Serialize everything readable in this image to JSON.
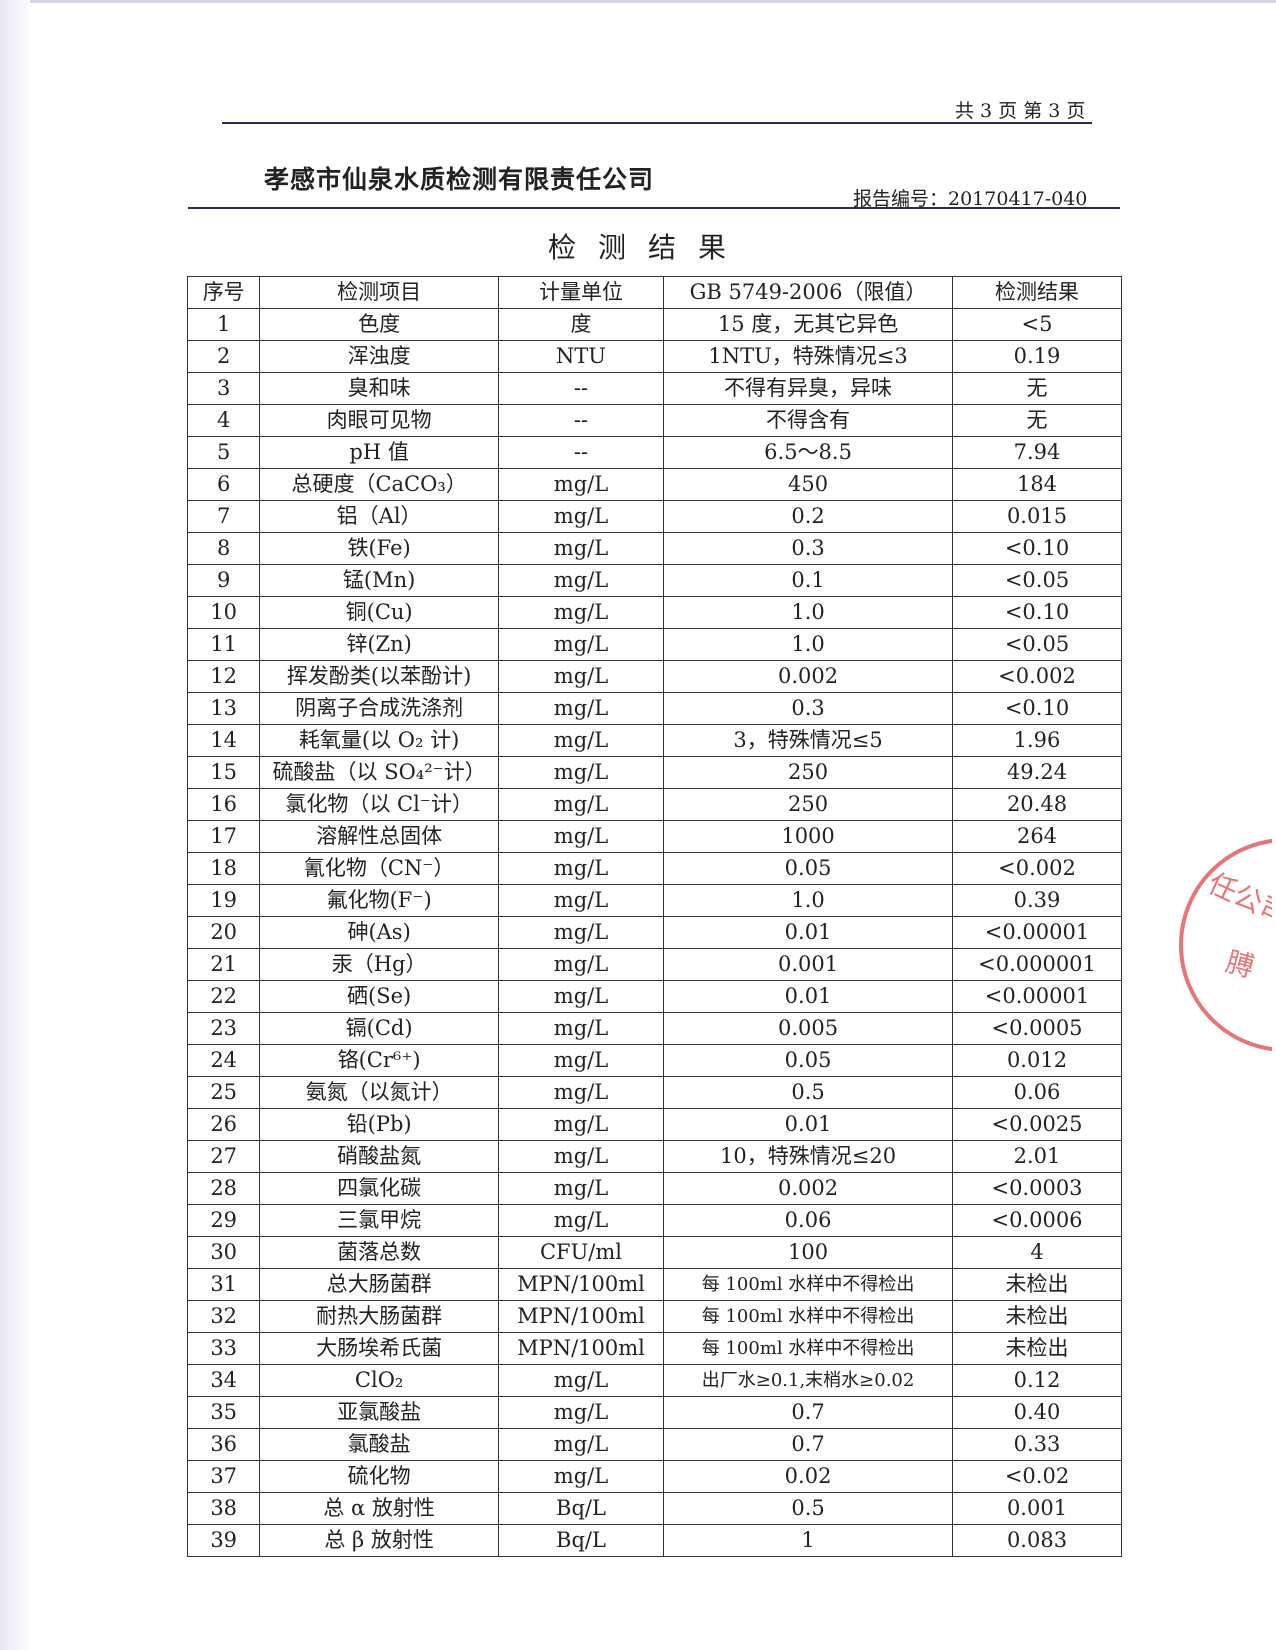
{
  "header": {
    "page_info": "共 3 页  第 3 页",
    "company": "孝感市仙泉水质检测有限责任公司",
    "report_no": "报告编号：20170417-040",
    "title": "检测结果"
  },
  "table": {
    "columns": [
      "序号",
      "检测项目",
      "计量单位",
      "GB 5749-2006（限值）",
      "检测结果"
    ],
    "rows": [
      [
        "1",
        "色度",
        "度",
        "15 度，无其它异色",
        "<5"
      ],
      [
        "2",
        "浑浊度",
        "NTU",
        "1NTU，特殊情况≤3",
        "0.19"
      ],
      [
        "3",
        "臭和味",
        "--",
        "不得有异臭，异味",
        "无"
      ],
      [
        "4",
        "肉眼可见物",
        "--",
        "不得含有",
        "无"
      ],
      [
        "5",
        "pH 值",
        "--",
        "6.5～8.5",
        "7.94"
      ],
      [
        "6",
        "总硬度（CaCO₃）",
        "mg/L",
        "450",
        "184"
      ],
      [
        "7",
        "铝（Al）",
        "mg/L",
        "0.2",
        "0.015"
      ],
      [
        "8",
        "铁(Fe)",
        "mg/L",
        "0.3",
        "<0.10"
      ],
      [
        "9",
        "锰(Mn)",
        "mg/L",
        "0.1",
        "<0.05"
      ],
      [
        "10",
        "铜(Cu)",
        "mg/L",
        "1.0",
        "<0.10"
      ],
      [
        "11",
        "锌(Zn)",
        "mg/L",
        "1.0",
        "<0.05"
      ],
      [
        "12",
        "挥发酚类(以苯酚计)",
        "mg/L",
        "0.002",
        "<0.002"
      ],
      [
        "13",
        "阴离子合成洗涤剂",
        "mg/L",
        "0.3",
        "<0.10"
      ],
      [
        "14",
        "耗氧量(以 O₂ 计)",
        "mg/L",
        "3，特殊情况≤5",
        "1.96"
      ],
      [
        "15",
        "硫酸盐（以 SO₄²⁻计）",
        "mg/L",
        "250",
        "49.24"
      ],
      [
        "16",
        "氯化物（以 Cl⁻计）",
        "mg/L",
        "250",
        "20.48"
      ],
      [
        "17",
        "溶解性总固体",
        "mg/L",
        "1000",
        "264"
      ],
      [
        "18",
        "氰化物（CN⁻）",
        "mg/L",
        "0.05",
        "<0.002"
      ],
      [
        "19",
        "氟化物(F⁻)",
        "mg/L",
        "1.0",
        "0.39"
      ],
      [
        "20",
        "砷(As)",
        "mg/L",
        "0.01",
        "<0.00001"
      ],
      [
        "21",
        "汞（Hg）",
        "mg/L",
        "0.001",
        "<0.000001"
      ],
      [
        "22",
        "硒(Se)",
        "mg/L",
        "0.01",
        "<0.00001"
      ],
      [
        "23",
        "镉(Cd)",
        "mg/L",
        "0.005",
        "<0.0005"
      ],
      [
        "24",
        "铬(Cr⁶⁺)",
        "mg/L",
        "0.05",
        "0.012"
      ],
      [
        "25",
        "氨氮（以氮计）",
        "mg/L",
        "0.5",
        "0.06"
      ],
      [
        "26",
        "铅(Pb)",
        "mg/L",
        "0.01",
        "<0.0025"
      ],
      [
        "27",
        "硝酸盐氮",
        "mg/L",
        "10，特殊情况≤20",
        "2.01"
      ],
      [
        "28",
        "四氯化碳",
        "mg/L",
        "0.002",
        "<0.0003"
      ],
      [
        "29",
        "三氯甲烷",
        "mg/L",
        "0.06",
        "<0.0006"
      ],
      [
        "30",
        "菌落总数",
        "CFU/ml",
        "100",
        "4"
      ],
      [
        "31",
        "总大肠菌群",
        "MPN/100ml",
        "每 100ml 水样中不得检出",
        "未检出"
      ],
      [
        "32",
        "耐热大肠菌群",
        "MPN/100ml",
        "每 100ml 水样中不得检出",
        "未检出"
      ],
      [
        "33",
        "大肠埃希氏菌",
        "MPN/100ml",
        "每 100ml 水样中不得检出",
        "未检出"
      ],
      [
        "34",
        "ClO₂",
        "mg/L",
        "出厂水≥0.1,末梢水≥0.02",
        "0.12"
      ],
      [
        "35",
        "亚氯酸盐",
        "mg/L",
        "0.7",
        "0.40"
      ],
      [
        "36",
        "氯酸盐",
        "mg/L",
        "0.7",
        "0.33"
      ],
      [
        "37",
        "硫化物",
        "mg/L",
        "0.02",
        "<0.02"
      ],
      [
        "38",
        "总 α 放射性",
        "Bq/L",
        "0.5",
        "0.001"
      ],
      [
        "39",
        "总 β 放射性",
        "Bq/L",
        "1",
        "0.083"
      ]
    ]
  },
  "stamp": {
    "text": "任公司 膊",
    "color": "#e0484a"
  }
}
